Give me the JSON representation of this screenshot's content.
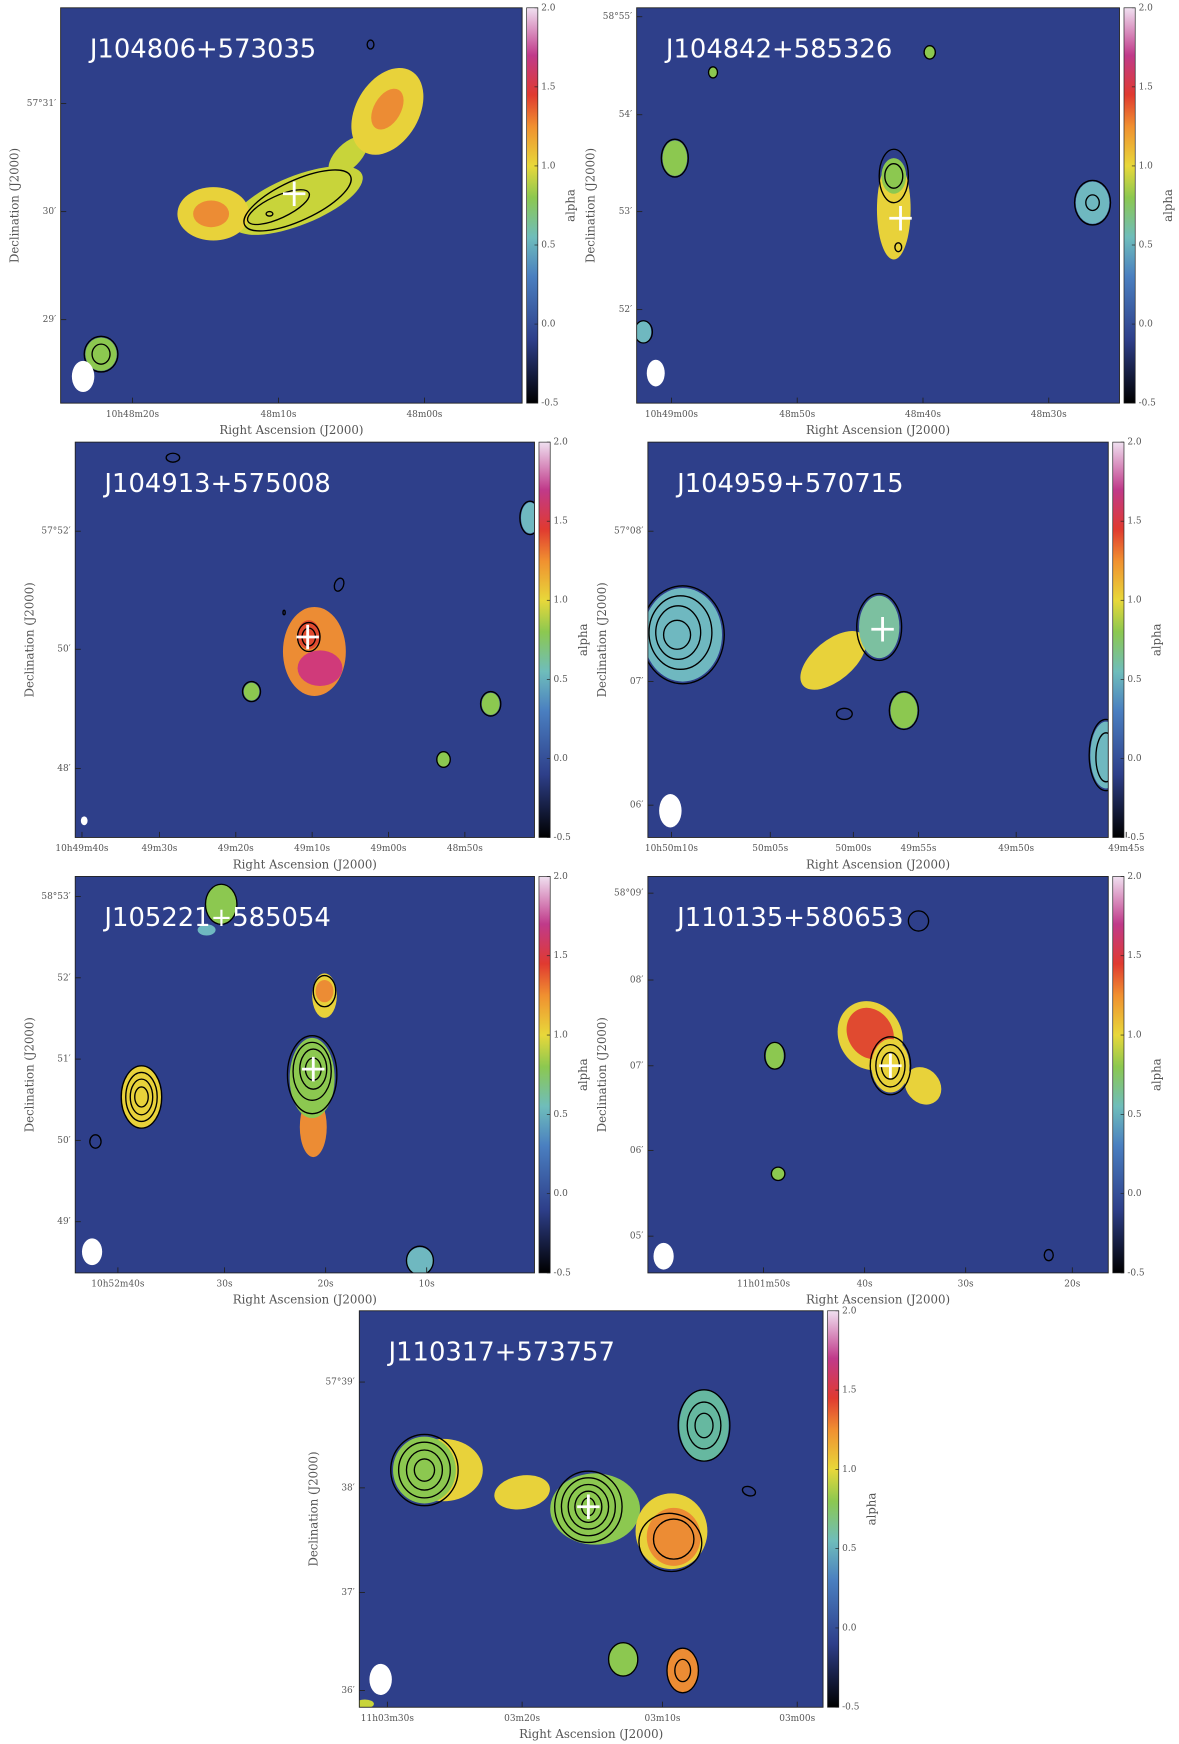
{
  "chart_data": [
    {
      "type": "heatmap",
      "title": "J104806+573035",
      "xlabel": "Right Ascension (J2000)",
      "ylabel": "Declination (J2000)",
      "xtick_labels": [
        "10h48m20s",
        "48m10s",
        "48m00s"
      ],
      "ytick_labels": [
        "57°31′",
        "30′",
        "29′"
      ],
      "colorbar": {
        "label": "alpha",
        "clim": [
          -0.5,
          2.0
        ],
        "ticks": [
          -0.5,
          {
            "value": 0,
            "label": "0.0"
          },
          0.5,
          {
            "value": 1,
            "label": "1.0"
          },
          1.5,
          {
            "value": 2,
            "label": "2.0"
          }
        ]
      }
    },
    {
      "type": "heatmap",
      "title": "J104842+585326",
      "xlabel": "Right Ascension (J2000)",
      "ylabel": "Declination (J2000)",
      "xtick_labels": [
        "10h49m00s",
        "48m50s",
        "48m40s",
        "48m30s"
      ],
      "ytick_labels": [
        "58°55′",
        "54′",
        "53′",
        "52′"
      ],
      "colorbar": {
        "label": "alpha",
        "clim": [
          -0.5,
          2.0
        ],
        "ticks": [
          -0.5,
          {
            "value": 0,
            "label": "0.0"
          },
          0.5,
          {
            "value": 1,
            "label": "1.0"
          },
          1.5,
          {
            "value": 2,
            "label": "2.0"
          }
        ]
      }
    },
    {
      "type": "heatmap",
      "title": "J104913+575008",
      "xlabel": "Right Ascension (J2000)",
      "ylabel": "Declination (J2000)",
      "xtick_labels": [
        "10h49m40s",
        "49m30s",
        "49m20s",
        "49m10s",
        "49m00s",
        "48m50s"
      ],
      "ytick_labels": [
        "57°52′",
        "50′",
        "48′"
      ],
      "colorbar": {
        "label": "alpha",
        "clim": [
          -0.5,
          2.0
        ],
        "ticks": [
          -0.5,
          {
            "value": 0,
            "label": "0.0"
          },
          0.5,
          {
            "value": 1,
            "label": "1.0"
          },
          1.5,
          {
            "value": 2,
            "label": "2.0"
          }
        ]
      }
    },
    {
      "type": "heatmap",
      "title": "J104959+570715",
      "xlabel": "Right Ascension (J2000)",
      "ylabel": "Declination (J2000)",
      "xtick_labels": [
        "10h50m10s",
        "50m05s",
        "50m00s",
        "49m55s",
        "49m50s",
        "49m45s"
      ],
      "ytick_labels": [
        "57°08′",
        "07′",
        "06′"
      ],
      "colorbar": {
        "label": "alpha",
        "clim": [
          -0.5,
          2.0
        ],
        "ticks": [
          -0.5,
          {
            "value": 0,
            "label": "0.0"
          },
          0.5,
          {
            "value": 1,
            "label": "1.0"
          },
          1.5,
          {
            "value": 2,
            "label": "2.0"
          }
        ]
      }
    },
    {
      "type": "heatmap",
      "title": "J105221+585054",
      "xlabel": "Right Ascension (J2000)",
      "ylabel": "Declination (J2000)",
      "xtick_labels": [
        "10h52m40s",
        "30s",
        "20s",
        "10s"
      ],
      "ytick_labels": [
        "58°53′",
        "52′",
        "51′",
        "50′",
        "49′"
      ],
      "colorbar": {
        "label": "alpha",
        "clim": [
          -0.5,
          2.0
        ],
        "ticks": [
          -0.5,
          {
            "value": 0,
            "label": "0.0"
          },
          0.5,
          {
            "value": 1,
            "label": "1.0"
          },
          1.5,
          {
            "value": 2,
            "label": "2.0"
          }
        ]
      }
    },
    {
      "type": "heatmap",
      "title": "J110135+580653",
      "xlabel": "Right Ascension (J2000)",
      "ylabel": "Declination (J2000)",
      "xtick_labels": [
        "11h01m50s",
        "40s",
        "30s",
        "20s"
      ],
      "ytick_labels": [
        "58°09′",
        "08′",
        "07′",
        "06′",
        "05′"
      ],
      "colorbar": {
        "label": "alpha",
        "clim": [
          -0.5,
          2.0
        ],
        "ticks": [
          -0.5,
          {
            "value": 0,
            "label": "0.0"
          },
          0.5,
          {
            "value": 1,
            "label": "1.0"
          },
          1.5,
          {
            "value": 2,
            "label": "2.0"
          }
        ]
      }
    },
    {
      "type": "heatmap",
      "title": "J110317+573757",
      "xlabel": "Right Ascension (J2000)",
      "ylabel": "Declination (J2000)",
      "xtick_labels": [
        "11h03m30s",
        "03m20s",
        "03m10s",
        "03m00s"
      ],
      "ytick_labels": [
        "57°39′",
        "38′",
        "37′",
        "36′"
      ],
      "colorbar": {
        "label": "alpha",
        "clim": [
          -0.5,
          2.0
        ],
        "ticks": [
          -0.5,
          {
            "value": 0,
            "label": "0.0"
          },
          0.5,
          {
            "value": 1,
            "label": "1.0"
          },
          1.5,
          {
            "value": 2,
            "label": "2.0"
          }
        ]
      }
    }
  ]
}
